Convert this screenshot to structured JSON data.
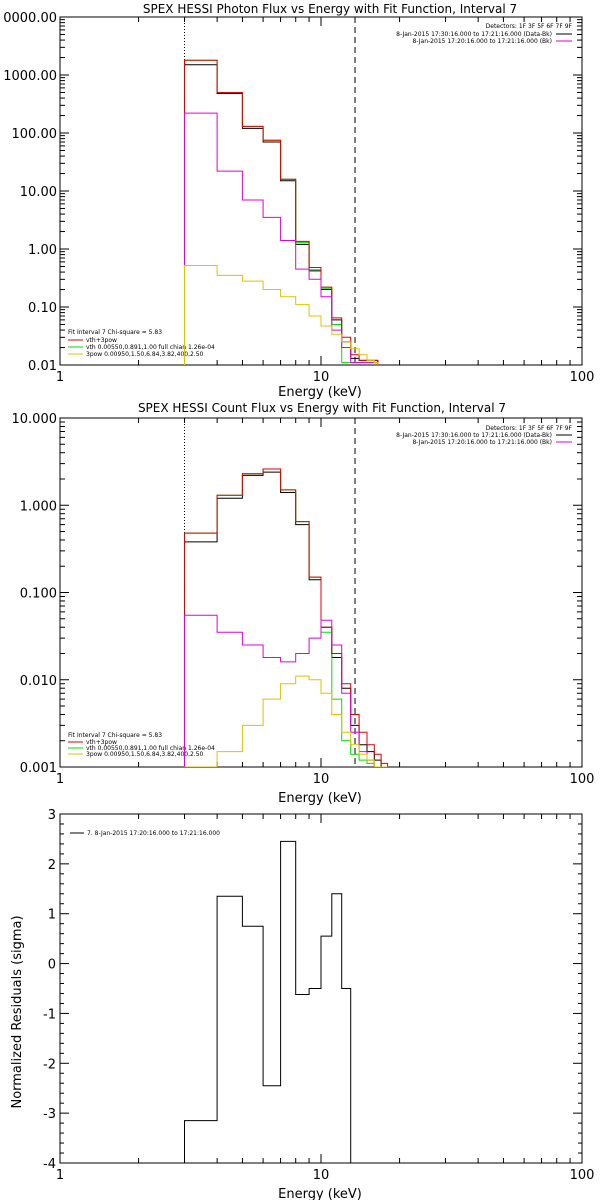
{
  "chart_data": [
    {
      "type": "line",
      "title": "SPEX HESSI Photon Flux vs Energy with Fit Function, Interval 7",
      "xlabel": "Energy (keV)",
      "ylabel": "",
      "xscale": "log",
      "yscale": "log",
      "xlim": [
        1,
        100
      ],
      "ylim": [
        0.01,
        10000
      ],
      "x_tick_labels": [
        "1",
        "10",
        "100"
      ],
      "y_tick_labels": [
        "0.01",
        "0.10",
        "1.00",
        "10.00",
        "100.00",
        "1000.00",
        "0000.00"
      ],
      "legend_topright": {
        "title": "Detectors: 1F 3F 5F 6F 7F 9F",
        "entries": [
          {
            "text": "8-Jan-2015 17:30:16.000 to 17:21:16.000 (Data-Bk)",
            "color": "#000000"
          },
          {
            "text": "8-Jan-2015 17:20:16.000 to 17:21:16.000 (Bk)",
            "color": "#e000e0"
          }
        ]
      },
      "legend_bottomleft": {
        "title": "Fit Interval 7   Chi-square = 5.83",
        "entries": [
          {
            "text": "vth+3pow",
            "color": "#e00000"
          },
          {
            "text": "vth 0.00550,0.891,1.00   full chian 1.26e-04",
            "color": "#00e000"
          },
          {
            "text": "3pow 0.00950,1.50,6.84,3.82,400,2.50",
            "color": "#e0c000"
          }
        ]
      },
      "vlines": [
        {
          "x": 3.0,
          "style": "dotted"
        },
        {
          "x": 13.5,
          "style": "dashed"
        }
      ],
      "edges": [
        3.0,
        3.5,
        4.0,
        4.5,
        5.0,
        5.5,
        6.0,
        6.5,
        7.0,
        7.5,
        8.0,
        8.5,
        9.0,
        9.5,
        10.0,
        10.5,
        11.0,
        11.5,
        12.0,
        12.5,
        13.0,
        13.5,
        14.0,
        14.5,
        15.0,
        15.5,
        16.0,
        16.5
      ],
      "series": [
        {
          "color": "#000000",
          "values": [
            1500,
            1500,
            480,
            480,
            120,
            120,
            70,
            70,
            15,
            15,
            1.2,
            1.2,
            0.42,
            0.42,
            0.2,
            0.2,
            0.06,
            0.06,
            0.025,
            0.025,
            0.013,
            0.013,
            0.012,
            0.012,
            0.012,
            0.012,
            0.012
          ]
        },
        {
          "color": "#00e000",
          "values": [
            1800,
            1800,
            500,
            500,
            130,
            130,
            75,
            75,
            16,
            16,
            1.3,
            1.3,
            0.44,
            0.44,
            0.21,
            0.21,
            0.05,
            0.05,
            0.011,
            0.011,
            0.011,
            0.011,
            0.011,
            0.011,
            0.011,
            0.011,
            0.011
          ]
        },
        {
          "color": "#e00000",
          "values": [
            1800,
            1800,
            500,
            500,
            130,
            130,
            75,
            75,
            16,
            16,
            1.35,
            1.35,
            0.48,
            0.48,
            0.22,
            0.22,
            0.065,
            0.065,
            0.03,
            0.03,
            0.015,
            0.015,
            0.012,
            0.012,
            0.012,
            0.012,
            0.012
          ]
        },
        {
          "color": "#e000e0",
          "values": [
            220,
            220,
            22,
            22,
            7,
            7,
            3.5,
            3.5,
            1.4,
            1.4,
            0.45,
            0.45,
            0.3,
            0.3,
            0.15,
            0.15,
            0.04,
            0.04,
            0.02,
            0.02,
            0.011,
            0.011,
            0.011,
            0.011,
            0.011,
            0.011,
            0.011
          ]
        },
        {
          "color": "#e0c000",
          "values": [
            0.52,
            0.52,
            0.35,
            0.35,
            0.28,
            0.28,
            0.2,
            0.2,
            0.15,
            0.15,
            0.11,
            0.11,
            0.07,
            0.07,
            0.047,
            0.047,
            0.034,
            0.034,
            0.025,
            0.025,
            0.019,
            0.019,
            0.015,
            0.015,
            0.012,
            0.012,
            0.011
          ]
        }
      ]
    },
    {
      "type": "line",
      "title": "SPEX HESSI Count Flux vs Energy with Fit Function, Interval 7",
      "xlabel": "Energy (keV)",
      "ylabel": "",
      "xscale": "log",
      "yscale": "log",
      "xlim": [
        1,
        100
      ],
      "ylim": [
        0.001,
        10
      ],
      "x_tick_labels": [
        "1",
        "10",
        "100"
      ],
      "y_tick_labels": [
        "0.001",
        "0.010",
        "0.100",
        "1.000",
        "10.000"
      ],
      "legend_topright": {
        "title": "Detectors: 1F 3F 5F 6F 7F 9F",
        "entries": [
          {
            "text": "8-Jan-2015 17:30:16.000 to 17:21:16.000 (Data-Bk)",
            "color": "#000000"
          },
          {
            "text": "8-Jan-2015 17:20:16.000 to 17:21:16.000 (Bk)",
            "color": "#e000e0"
          }
        ]
      },
      "legend_bottomleft": {
        "title": "Fit Interval 7   Chi-square = 5.83",
        "entries": [
          {
            "text": "vth+3pow",
            "color": "#e00000"
          },
          {
            "text": "vth 0.00550,0.891,1.00   full chian 1.26e-04",
            "color": "#00e000"
          },
          {
            "text": "3pow 0.00950,1.50,6.84,3.82,400,2.50",
            "color": "#e0c000"
          }
        ]
      },
      "vlines": [
        {
          "x": 3.0,
          "style": "dotted"
        },
        {
          "x": 13.5,
          "style": "dashed"
        }
      ],
      "edges": [
        3.0,
        4.0,
        5.0,
        6.0,
        7.0,
        8.0,
        9.0,
        10.0,
        11.0,
        12.0,
        13.0,
        14.0,
        15.0,
        16.0,
        17.0,
        18.0
      ],
      "series": [
        {
          "color": "#000000",
          "values": [
            0.38,
            1.2,
            2.2,
            2.4,
            1.4,
            0.6,
            0.14,
            0.04,
            0.018,
            0.008,
            0.003,
            0.0018,
            0.0015,
            0.0012,
            0.001
          ]
        },
        {
          "color": "#00e000",
          "values": [
            0.48,
            1.3,
            2.3,
            2.6,
            1.5,
            0.65,
            0.15,
            0.035,
            0.006,
            0.002,
            0.0014,
            0.0012,
            0.0011,
            0.001,
            0.001
          ]
        },
        {
          "color": "#e00000",
          "values": [
            0.48,
            1.3,
            2.3,
            2.6,
            1.5,
            0.65,
            0.15,
            0.04,
            0.02,
            0.009,
            0.004,
            0.0025,
            0.0018,
            0.0014,
            0.0011
          ]
        },
        {
          "color": "#e000e0",
          "values": [
            0.055,
            0.035,
            0.025,
            0.018,
            0.016,
            0.02,
            0.03,
            0.048,
            0.025,
            0.007,
            0.0025,
            0.0015,
            0.0012,
            0.001,
            0.001
          ]
        },
        {
          "color": "#e0c000",
          "values": [
            0.001,
            0.0015,
            0.003,
            0.006,
            0.009,
            0.011,
            0.01,
            0.007,
            0.004,
            0.0025,
            0.0018,
            0.0014,
            0.0012,
            0.001,
            0.001
          ]
        }
      ]
    },
    {
      "type": "line",
      "title": "",
      "xlabel": "Energy (keV)",
      "ylabel": "Normalized Residuals (sigma)",
      "xscale": "log",
      "yscale": "linear",
      "xlim": [
        1,
        100
      ],
      "ylim": [
        -4,
        3
      ],
      "x_tick_labels": [
        "1",
        "10",
        "100"
      ],
      "y_tick_labels": [
        "-4",
        "-3",
        "-2",
        "-1",
        "0",
        "1",
        "2",
        "3"
      ],
      "legend": {
        "text": "7.  8-Jan-2015 17:20:16.000 to 17:21:16.000",
        "color": "#000000"
      },
      "edges": [
        3.0,
        4.0,
        5.0,
        6.0,
        7.0,
        8.0,
        9.0,
        10.0,
        11.0,
        12.0,
        13.0
      ],
      "series": [
        {
          "color": "#000000",
          "values": [
            -3.15,
            1.35,
            0.75,
            -2.45,
            2.45,
            -0.62,
            -0.5,
            0.55,
            1.4,
            -0.5
          ]
        }
      ]
    }
  ]
}
